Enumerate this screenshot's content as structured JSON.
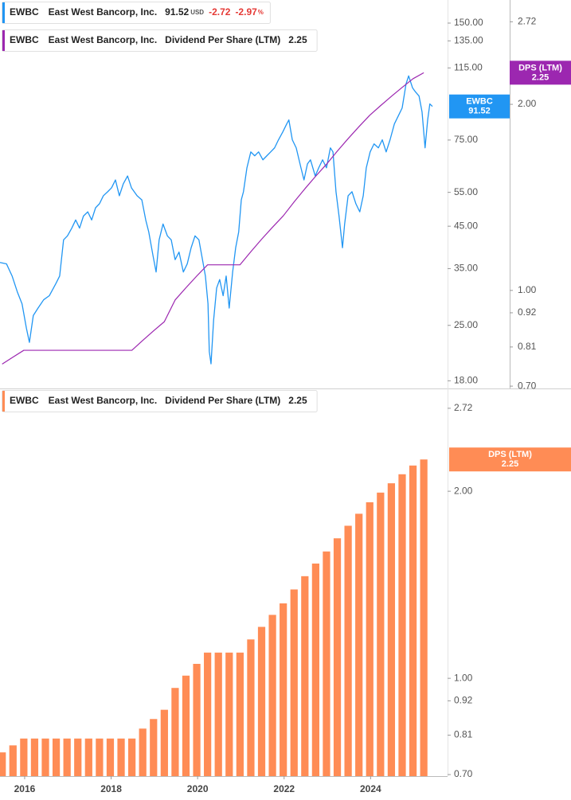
{
  "chart_data": [
    {
      "type": "line",
      "log_scale": true,
      "ticker": "EWBC",
      "company": "East West Bancorp, Inc.",
      "currency": "USD",
      "change": -2.72,
      "change_pct": -2.97,
      "change_pct_unit": "%",
      "xlim": [
        2015.43,
        2025.78
      ],
      "ylim": [
        17.2,
        172
      ],
      "yticks": [
        {
          "value": 18,
          "label": "18.00"
        },
        {
          "value": 25,
          "label": "25.00"
        },
        {
          "value": 35,
          "label": "35.00"
        },
        {
          "value": 45,
          "label": "45.00"
        },
        {
          "value": 55,
          "label": "55.00"
        },
        {
          "value": 75,
          "label": "75.00"
        },
        {
          "value": 115,
          "label": "115.00"
        },
        {
          "value": 135,
          "label": "135.00"
        },
        {
          "value": 150,
          "label": "150.00"
        }
      ],
      "y2lim": [
        0.694,
        2.95
      ],
      "y2ticks": [
        {
          "value": 0.7,
          "label": "0.70"
        },
        0.81,
        0.92,
        {
          "value": 1,
          "label": "1.00"
        },
        {
          "value": 2,
          "label": "2.00"
        },
        2.72
      ],
      "series": [
        {
          "name": "EWBC",
          "color": "#2196f3",
          "x": [
            2015.43,
            2015.58,
            2015.71,
            2015.83,
            2015.94,
            2016.04,
            2016.11,
            2016.2,
            2016.31,
            2016.44,
            2016.57,
            2016.72,
            2016.81,
            2016.9,
            2016.99,
            2017.09,
            2017.18,
            2017.27,
            2017.36,
            2017.46,
            2017.55,
            2017.64,
            2017.73,
            2017.82,
            2017.92,
            2018.01,
            2018.1,
            2018.19,
            2018.28,
            2018.38,
            2018.47,
            2018.6,
            2018.71,
            2018.8,
            2018.87,
            2018.97,
            2019.04,
            2019.11,
            2019.2,
            2019.3,
            2019.39,
            2019.48,
            2019.57,
            2019.67,
            2019.76,
            2019.85,
            2019.94,
            2020.03,
            2020.13,
            2020.18,
            2020.24,
            2020.27,
            2020.31,
            2020.37,
            2020.44,
            2020.51,
            2020.59,
            2020.66,
            2020.73,
            2020.81,
            2020.88,
            2020.95,
            2021.01,
            2021.06,
            2021.14,
            2021.23,
            2021.32,
            2021.41,
            2021.51,
            2021.6,
            2021.69,
            2021.78,
            2021.87,
            2021.97,
            2022.06,
            2022.11,
            2022.19,
            2022.28,
            2022.39,
            2022.46,
            2022.54,
            2022.61,
            2022.72,
            2022.8,
            2022.89,
            2022.98,
            2023.07,
            2023.13,
            2023.2,
            2023.27,
            2023.35,
            2023.4,
            2023.48,
            2023.57,
            2023.66,
            2023.75,
            2023.83,
            2023.9,
            2023.99,
            2024.08,
            2024.18,
            2024.27,
            2024.36,
            2024.45,
            2024.55,
            2024.64,
            2024.73,
            2024.82,
            2024.88,
            2024.97,
            2025.04,
            2025.12,
            2025.19,
            2025.26,
            2025.32,
            2025.37,
            2025.43
          ],
          "values": [
            36.3,
            36.0,
            33.5,
            30.5,
            28.4,
            24.6,
            22.6,
            26.5,
            27.7,
            29.1,
            29.8,
            32.0,
            33.5,
            41.5,
            42.5,
            44.5,
            46.7,
            44.5,
            47.8,
            49.0,
            46.7,
            50.2,
            51.4,
            53.9,
            55.2,
            56.5,
            59.2,
            53.9,
            57.8,
            60.6,
            56.5,
            53.9,
            52.6,
            46.7,
            43.5,
            37.7,
            34.3,
            41.5,
            45.6,
            42.5,
            41.5,
            36.9,
            38.6,
            34.3,
            36.0,
            39.6,
            42.5,
            41.5,
            36.0,
            33.5,
            28.4,
            21.4,
            19.9,
            25.8,
            31.2,
            32.8,
            29.8,
            33.5,
            27.7,
            34.3,
            39.6,
            43.5,
            52.6,
            55.2,
            63.6,
            69.9,
            68.3,
            69.9,
            66.7,
            68.3,
            69.9,
            71.6,
            75.1,
            78.7,
            82.5,
            84.5,
            75.1,
            71.6,
            63.6,
            59.2,
            65.1,
            66.7,
            60.6,
            63.6,
            66.7,
            63.6,
            71.6,
            69.9,
            55.2,
            47.8,
            39.6,
            45.6,
            53.9,
            55.2,
            51.4,
            49.0,
            53.9,
            63.6,
            69.9,
            73.3,
            71.6,
            75.1,
            69.9,
            75.1,
            82.5,
            86.5,
            90.7,
            104.6,
            109.7,
            102.2,
            99.7,
            97.4,
            88.6,
            71.6,
            84.5,
            92.9,
            91.52
          ]
        },
        {
          "name": "Dividend Per Share (LTM)",
          "short_name": "DPS (LTM)",
          "color": "#9c27b0",
          "axis": "y2",
          "x": [
            2015.48,
            2015.73,
            2015.98,
            2016.23,
            2016.48,
            2016.73,
            2016.98,
            2017.23,
            2017.48,
            2017.73,
            2017.98,
            2018.23,
            2018.48,
            2018.73,
            2018.98,
            2019.23,
            2019.48,
            2019.73,
            2019.98,
            2020.23,
            2020.48,
            2020.73,
            2020.98,
            2021.23,
            2021.48,
            2021.73,
            2021.98,
            2022.23,
            2022.48,
            2022.73,
            2022.98,
            2023.23,
            2023.48,
            2023.73,
            2023.98,
            2024.23,
            2024.48,
            2024.73,
            2024.98,
            2025.23
          ],
          "values": [
            0.76,
            0.78,
            0.8,
            0.8,
            0.8,
            0.8,
            0.8,
            0.8,
            0.8,
            0.8,
            0.8,
            0.8,
            0.8,
            0.83,
            0.86,
            0.89,
            0.965,
            1.01,
            1.055,
            1.1,
            1.1,
            1.1,
            1.1,
            1.155,
            1.21,
            1.265,
            1.32,
            1.39,
            1.46,
            1.53,
            1.6,
            1.68,
            1.76,
            1.84,
            1.92,
            1.99,
            2.06,
            2.13,
            2.2,
            2.25
          ]
        }
      ]
    },
    {
      "type": "bar",
      "log_scale": true,
      "ticker": "EWBC",
      "company": "East West Bancorp, Inc.",
      "xlim": [
        2015.43,
        2025.78
      ],
      "xticks": [
        2016,
        2018,
        2020,
        2022,
        2024
      ],
      "ylim": [
        0.696,
        2.91
      ],
      "yticks": [
        {
          "value": 0.7,
          "label": "0.70"
        },
        0.81,
        0.92,
        {
          "value": 1,
          "label": "1.00"
        },
        {
          "value": 2,
          "label": "2.00"
        },
        2.72
      ],
      "series": [
        {
          "name": "Dividend Per Share (LTM)",
          "short_name": "DPS (LTM)",
          "color": "#ff8c55",
          "x": [
            2015.48,
            2015.73,
            2015.98,
            2016.23,
            2016.48,
            2016.73,
            2016.98,
            2017.23,
            2017.48,
            2017.73,
            2017.98,
            2018.23,
            2018.48,
            2018.73,
            2018.98,
            2019.23,
            2019.48,
            2019.73,
            2019.98,
            2020.23,
            2020.48,
            2020.73,
            2020.98,
            2021.23,
            2021.48,
            2021.73,
            2021.98,
            2022.23,
            2022.48,
            2022.73,
            2022.98,
            2023.23,
            2023.48,
            2023.73,
            2023.98,
            2024.23,
            2024.48,
            2024.73,
            2024.98,
            2025.23
          ],
          "values": [
            0.76,
            0.78,
            0.8,
            0.8,
            0.8,
            0.8,
            0.8,
            0.8,
            0.8,
            0.8,
            0.8,
            0.8,
            0.8,
            0.83,
            0.86,
            0.89,
            0.965,
            1.01,
            1.055,
            1.1,
            1.1,
            1.1,
            1.1,
            1.155,
            1.21,
            1.265,
            1.32,
            1.39,
            1.46,
            1.53,
            1.6,
            1.68,
            1.76,
            1.84,
            1.92,
            1.99,
            2.06,
            2.13,
            2.2,
            2.25
          ]
        }
      ]
    }
  ]
}
